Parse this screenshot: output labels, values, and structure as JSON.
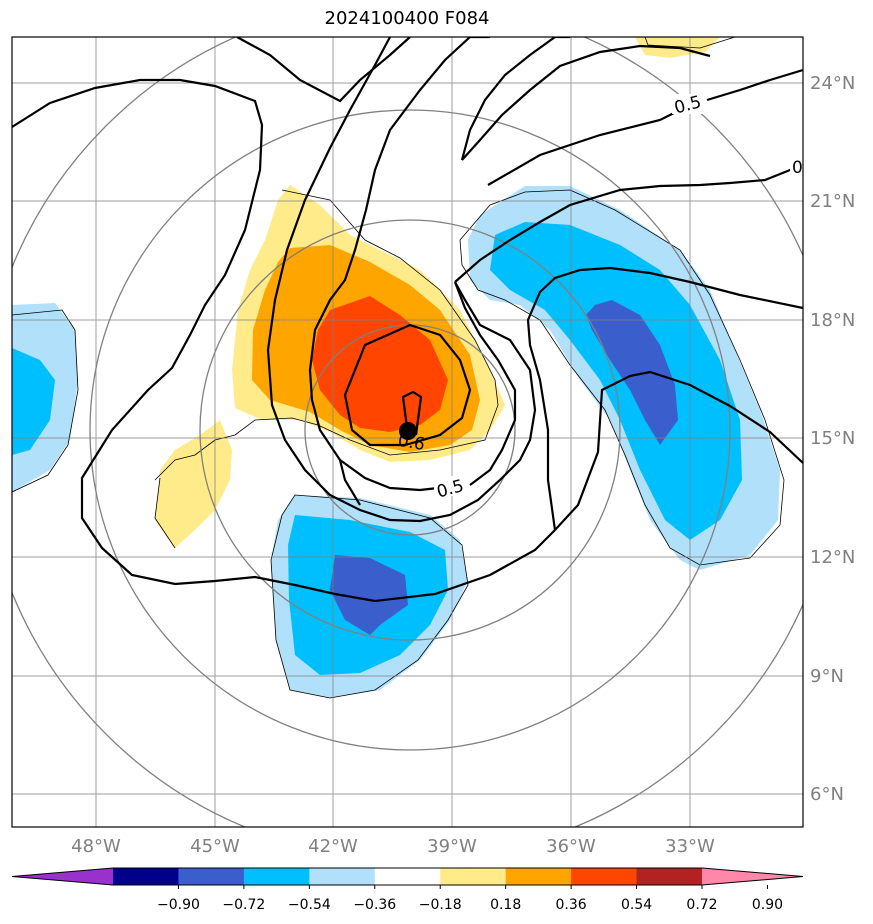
{
  "title": "2024100400 F084",
  "map": {
    "lon_ticks": [
      "48°W",
      "45°W",
      "42°W",
      "39°W",
      "36°W",
      "33°W"
    ],
    "lat_ticks": [
      "24°N",
      "21°N",
      "18°N",
      "15°N",
      "12°N",
      "9°N",
      "6°N"
    ],
    "contour_labels": [
      "0.5",
      "0.5",
      "0.6",
      "0"
    ],
    "center_marker": "storm-center-dot"
  },
  "colorbar": {
    "levels": [
      "−0.90",
      "−0.72",
      "−0.54",
      "−0.36",
      "−0.18",
      "0.18",
      "0.36",
      "0.54",
      "0.72",
      "0.90"
    ],
    "colors": [
      "#9932cc",
      "#00008b",
      "#3a5fcd",
      "#00bfff",
      "#b0e0fa",
      "#ffffff",
      "#ffeb8a",
      "#ffa500",
      "#ff4500",
      "#b22222",
      "#ff88aa"
    ],
    "extend": "both"
  },
  "colors": {
    "gridline": "#808080",
    "contour": "#000000",
    "range_ring": "#808080"
  }
}
